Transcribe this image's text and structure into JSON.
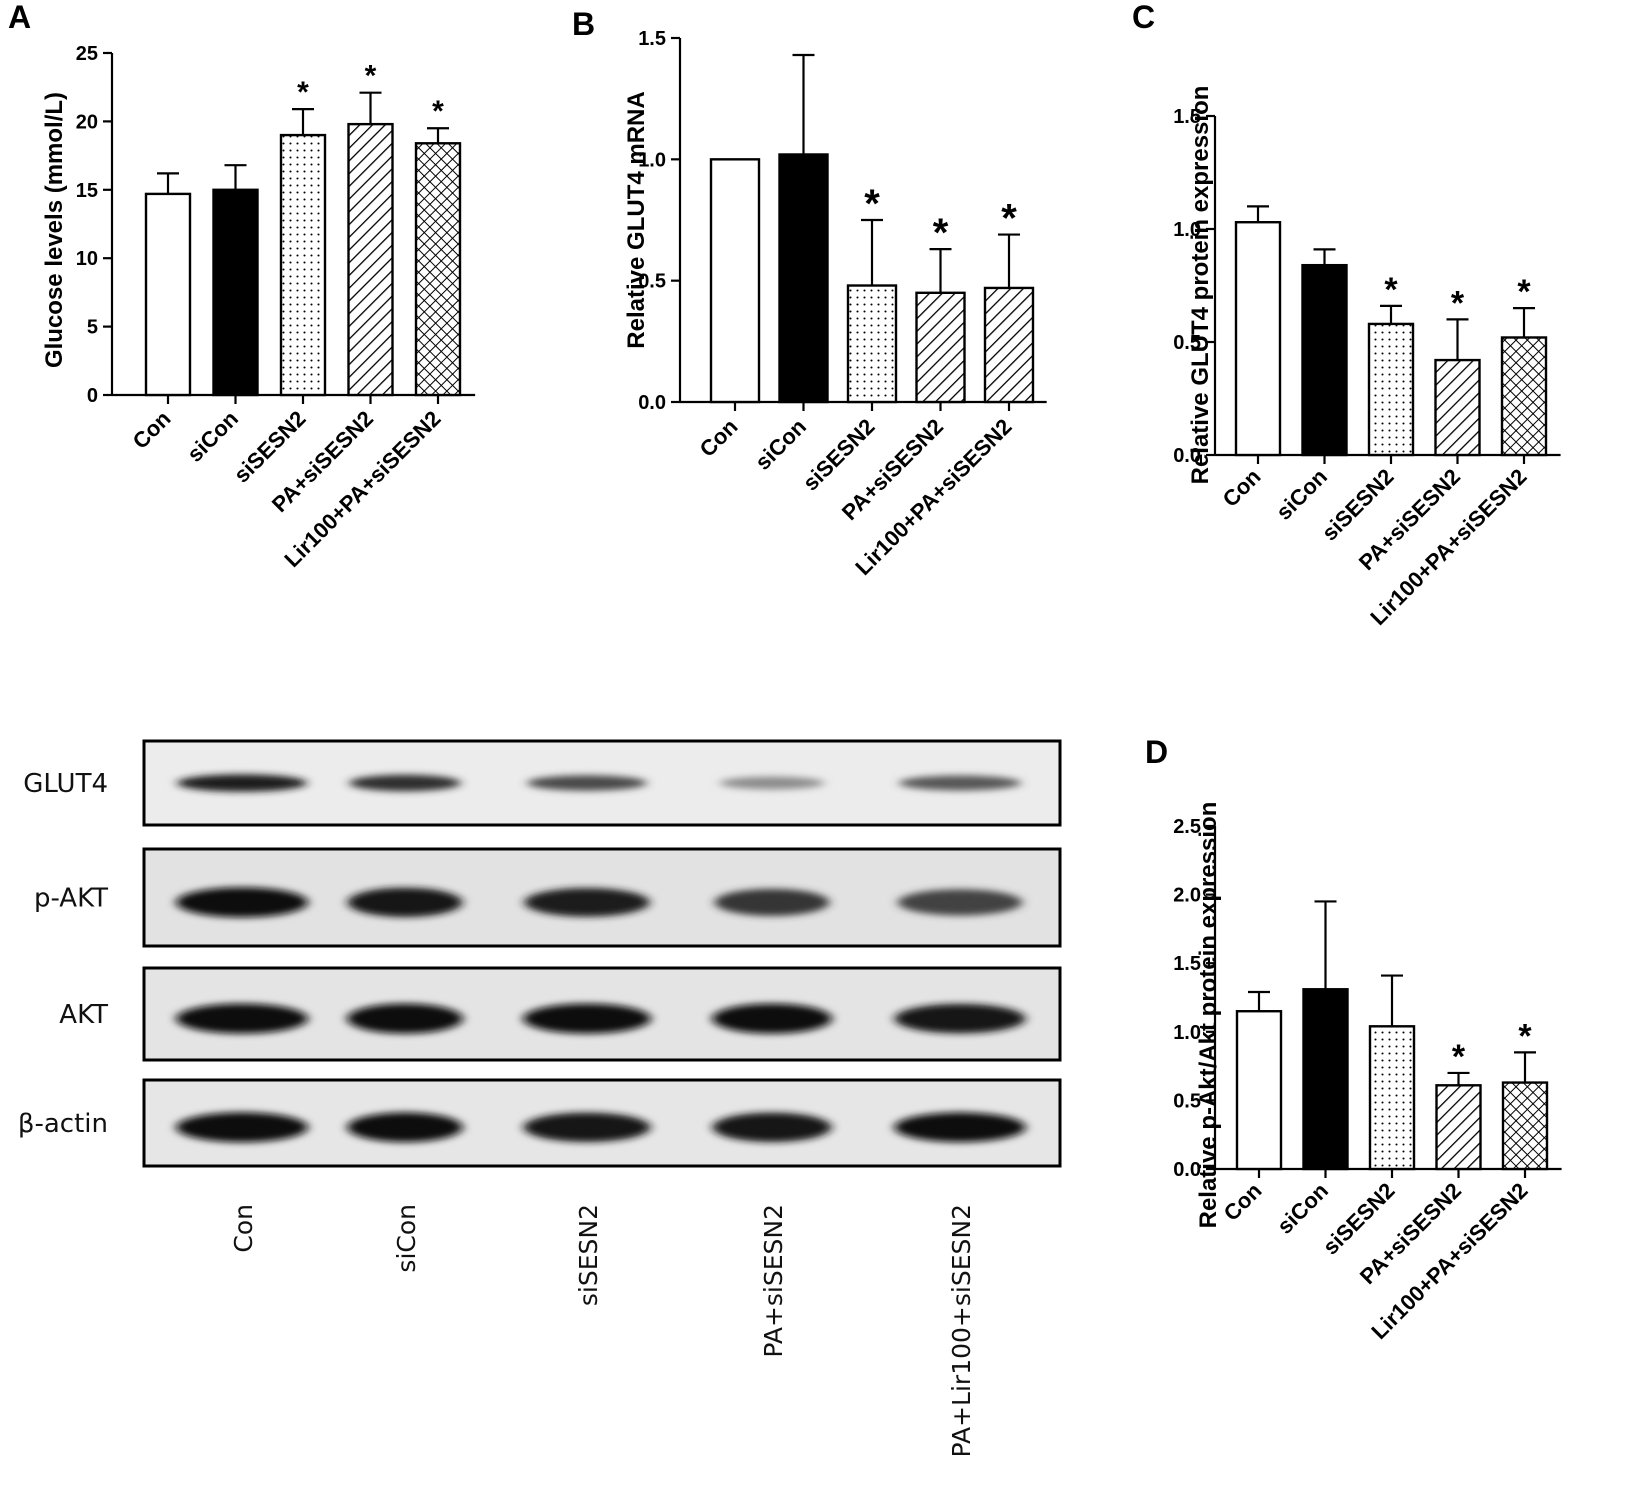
{
  "chart_data": [
    {
      "panel": "A",
      "type": "bar",
      "categories": [
        "Con",
        "siCon",
        "siSESN2",
        "PA+siSESN2",
        "Lir100+PA+siSESN2"
      ],
      "values": [
        14.7,
        15.0,
        19.0,
        19.8,
        18.4
      ],
      "errors": [
        1.5,
        1.8,
        1.9,
        2.3,
        1.1
      ],
      "significant": [
        false,
        false,
        true,
        true,
        true
      ],
      "patterns": [
        "white",
        "black",
        "dots",
        "diag",
        "cross"
      ],
      "ylabel": "Glucose levels (mmol/L)",
      "ylim": [
        0,
        25
      ],
      "yticks": [
        0,
        5,
        10,
        15,
        20,
        25
      ]
    },
    {
      "panel": "B",
      "type": "bar",
      "categories": [
        "Con",
        "siCon",
        "siSESN2",
        "PA+siSESN2",
        "Lir100+PA+siSESN2"
      ],
      "values": [
        1.0,
        1.02,
        0.48,
        0.45,
        0.47
      ],
      "errors": [
        0.0,
        0.41,
        0.27,
        0.18,
        0.22
      ],
      "significant": [
        false,
        false,
        true,
        true,
        true
      ],
      "patterns": [
        "white",
        "black",
        "dots",
        "diag",
        "diag"
      ],
      "ylabel": "Relative GLUT4 mRNA",
      "ylim": [
        0,
        1.5
      ],
      "yticks": [
        "0.0",
        "0.5",
        "1.0",
        "1.5"
      ]
    },
    {
      "panel": "C",
      "type": "bar",
      "categories": [
        "Con",
        "siCon",
        "siSESN2",
        "PA+siSESN2",
        "Lir100+PA+siSESN2"
      ],
      "values": [
        1.03,
        0.84,
        0.58,
        0.42,
        0.52
      ],
      "errors": [
        0.07,
        0.07,
        0.08,
        0.18,
        0.13
      ],
      "significant": [
        false,
        false,
        true,
        true,
        true
      ],
      "patterns": [
        "white",
        "black",
        "dots",
        "diag",
        "cross"
      ],
      "ylabel": "Relative GLUT4 protein expression",
      "ylim": [
        0,
        1.5
      ],
      "yticks": [
        "0.0",
        "0.5",
        "1.0",
        "1.5"
      ]
    },
    {
      "panel": "D",
      "type": "bar",
      "categories": [
        "Con",
        "siCon",
        "siSESN2",
        "PA+siSESN2",
        "Lir100+PA+siSESN2"
      ],
      "values": [
        1.15,
        1.31,
        1.04,
        0.61,
        0.63
      ],
      "errors": [
        0.14,
        0.64,
        0.37,
        0.09,
        0.22
      ],
      "significant": [
        false,
        false,
        false,
        true,
        true
      ],
      "patterns": [
        "white",
        "black",
        "dots",
        "diag",
        "cross"
      ],
      "ylabel": "Relative p-Akt/Akt protein expression",
      "ylim": [
        0,
        2.5
      ],
      "yticks": [
        "0.0",
        "0.5",
        "1.0",
        "1.5",
        "2.0",
        "2.5"
      ]
    }
  ],
  "significance_marker": "*",
  "blot": {
    "rows": [
      "GLUT4",
      "p-AKT",
      "AKT",
      "β-actin"
    ],
    "lanes": [
      "Con",
      "siCon",
      "siSESN2",
      "PA+siSESN2",
      "PA+Lir100+siSESN2"
    ],
    "band_intensity": [
      [
        0.92,
        0.82,
        0.68,
        0.35,
        0.62
      ],
      [
        1.0,
        0.95,
        0.9,
        0.78,
        0.72
      ],
      [
        1.0,
        1.0,
        1.0,
        1.0,
        0.96
      ],
      [
        1.0,
        0.98,
        0.96,
        0.96,
        0.98
      ]
    ]
  }
}
